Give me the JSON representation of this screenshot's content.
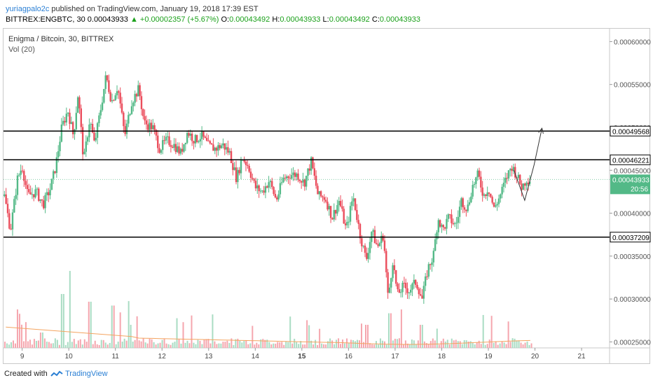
{
  "header": {
    "author": "yuriagpalo2c",
    "published": " published on TradingView.com, January 19, 2018 17:39 EST",
    "symbol": "BITTREX:ENGBTC, 30",
    "last": "0.00043933",
    "change": "▲ +0.00002357 (+5.67%)",
    "o_label": "O:",
    "o_value": "0.00043492",
    "h_label": "H:",
    "h_value": "0.00043933",
    "l_label": "L:",
    "l_value": "0.00043492",
    "c_label": "C:",
    "c_value": "0.00043933"
  },
  "legend": {
    "title": "Enigma / Bitcoin, 30, BITTREX",
    "volume": "Vol (20)"
  },
  "footer": {
    "created_with": "Created with",
    "brand": "TradingView"
  },
  "colors": {
    "up": "#53b987",
    "down": "#eb4d5c",
    "vol_up": "#a9dcc3",
    "vol_down": "#f5a6ae",
    "vol_ma": "#f4a460",
    "accent": "#2a7fd4",
    "hline": "#000000"
  },
  "chart_data": {
    "type": "candlestick",
    "x_ticks": [
      "9",
      "10",
      "11",
      "12",
      "13",
      "14",
      "15",
      "16",
      "17",
      "18",
      "19",
      "20",
      "21"
    ],
    "y_ticks": [
      "0.00025000",
      "0.00030000",
      "0.00035000",
      "0.00040000",
      "0.00045000",
      "0.00050000",
      "0.00055000",
      "0.00060000"
    ],
    "ylim": [
      0.000243,
      0.000615
    ],
    "xlim": [
      8.6,
      21.6
    ],
    "horizontal_lines": [
      {
        "value": 0.00049568,
        "label": "0.00049568"
      },
      {
        "value": 0.00046221,
        "label": "0.00046221"
      },
      {
        "value": 0.00037209,
        "label": "0.00037209"
      }
    ],
    "last_price": {
      "value": 0.00043933,
      "label": "0.00043933",
      "countdown": "20:56"
    },
    "price_path": [
      [
        8.62,
        0.00042
      ],
      [
        8.75,
        0.00038
      ],
      [
        8.9,
        0.00044
      ],
      [
        9.0,
        0.000455
      ],
      [
        9.12,
        0.00042
      ],
      [
        9.3,
        0.000425
      ],
      [
        9.45,
        0.00041
      ],
      [
        9.6,
        0.000428
      ],
      [
        9.72,
        0.000455
      ],
      [
        9.85,
        0.0005
      ],
      [
        9.98,
        0.00052
      ],
      [
        10.1,
        0.00049
      ],
      [
        10.2,
        0.00054
      ],
      [
        10.32,
        0.00046
      ],
      [
        10.45,
        0.00051
      ],
      [
        10.55,
        0.00048
      ],
      [
        10.68,
        0.00052
      ],
      [
        10.8,
        0.00056
      ],
      [
        10.92,
        0.00053
      ],
      [
        11.05,
        0.000548
      ],
      [
        11.2,
        0.00049
      ],
      [
        11.35,
        0.00053
      ],
      [
        11.5,
        0.000545
      ],
      [
        11.62,
        0.000505
      ],
      [
        11.8,
        0.0005
      ],
      [
        11.95,
        0.000475
      ],
      [
        12.1,
        0.000485
      ],
      [
        12.25,
        0.00048
      ],
      [
        12.4,
        0.00047
      ],
      [
        12.55,
        0.000495
      ],
      [
        12.7,
        0.000485
      ],
      [
        12.85,
        0.00049
      ],
      [
        13.0,
        0.000478
      ],
      [
        13.15,
        0.000475
      ],
      [
        13.3,
        0.00048
      ],
      [
        13.45,
        0.00047
      ],
      [
        13.6,
        0.00044
      ],
      [
        13.72,
        0.000465
      ],
      [
        13.85,
        0.000455
      ],
      [
        14.0,
        0.00043
      ],
      [
        14.15,
        0.000425
      ],
      [
        14.3,
        0.000438
      ],
      [
        14.45,
        0.000415
      ],
      [
        14.6,
        0.00044
      ],
      [
        14.75,
        0.000445
      ],
      [
        14.9,
        0.000445
      ],
      [
        15.05,
        0.000435
      ],
      [
        15.2,
        0.00046
      ],
      [
        15.35,
        0.00042
      ],
      [
        15.5,
        0.000418
      ],
      [
        15.65,
        0.000395
      ],
      [
        15.8,
        0.000415
      ],
      [
        15.95,
        0.00038
      ],
      [
        16.1,
        0.00042
      ],
      [
        16.25,
        0.000375
      ],
      [
        16.38,
        0.000345
      ],
      [
        16.5,
        0.00038
      ],
      [
        16.62,
        0.00036
      ],
      [
        16.75,
        0.000375
      ],
      [
        16.85,
        0.0003
      ],
      [
        16.95,
        0.000345
      ],
      [
        17.05,
        0.000305
      ],
      [
        17.18,
        0.000315
      ],
      [
        17.3,
        0.00031
      ],
      [
        17.45,
        0.00032
      ],
      [
        17.58,
        0.0003
      ],
      [
        17.7,
        0.000335
      ],
      [
        17.82,
        0.00035
      ],
      [
        17.92,
        0.000395
      ],
      [
        18.02,
        0.00038
      ],
      [
        18.15,
        0.000395
      ],
      [
        18.3,
        0.000385
      ],
      [
        18.42,
        0.000415
      ],
      [
        18.55,
        0.000405
      ],
      [
        18.65,
        0.00043
      ],
      [
        18.78,
        0.000445
      ],
      [
        18.9,
        0.00042
      ],
      [
        19.0,
        0.00043
      ],
      [
        19.12,
        0.000405
      ],
      [
        19.25,
        0.00042
      ],
      [
        19.38,
        0.00044
      ],
      [
        19.5,
        0.000455
      ],
      [
        19.6,
        0.000445
      ],
      [
        19.72,
        0.00043
      ],
      [
        19.82,
        0.00044
      ],
      [
        19.92,
        0.000439
      ]
    ],
    "volume_bars": [
      {
        "x": 8.9,
        "v": 0.5
      },
      {
        "x": 9.4,
        "v": 0.2
      },
      {
        "x": 9.88,
        "v": 0.7
      },
      {
        "x": 10.02,
        "v": 1.0
      },
      {
        "x": 10.45,
        "v": 0.6
      },
      {
        "x": 10.95,
        "v": 0.55
      },
      {
        "x": 11.3,
        "v": 0.3
      },
      {
        "x": 16.4,
        "v": 0.3
      },
      {
        "x": 16.88,
        "v": 0.45
      },
      {
        "x": 17.55,
        "v": 0.3
      }
    ],
    "drawings": [
      {
        "kind": "polyline",
        "points": [
          [
            19.55,
            0.00045
          ],
          [
            19.78,
            0.000415
          ],
          [
            19.98,
            0.000456
          ],
          [
            20.15,
            0.000499
          ]
        ],
        "arrow": true
      }
    ]
  }
}
